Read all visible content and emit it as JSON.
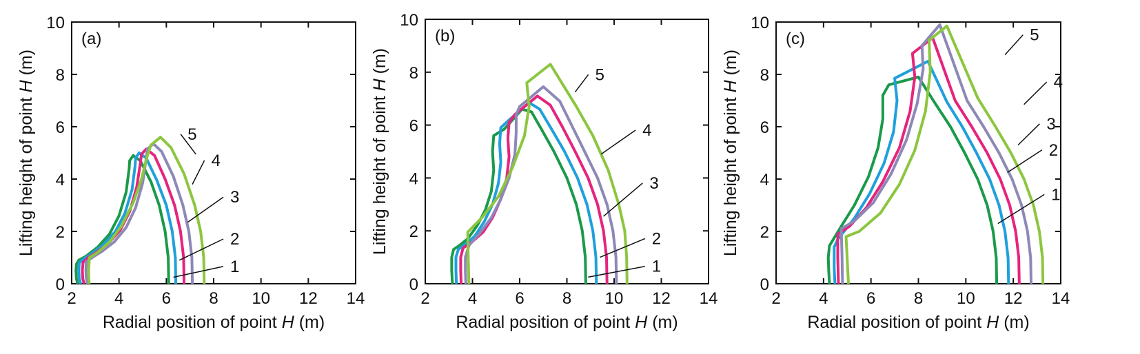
{
  "colors": {
    "1": "#1a9a4a",
    "2": "#1fa0dc",
    "3": "#e5247d",
    "4": "#8d88b8",
    "5": "#8cc63f",
    "axis": "#111111"
  },
  "chart_data": [
    {
      "type": "line",
      "panel_label": "(a)",
      "xlabel": {
        "pre": "Radial position of point ",
        "italic": "H",
        "post": " (m)"
      },
      "ylabel": {
        "pre": "Lifting height of point ",
        "italic": "H",
        "post": " (m)"
      },
      "xlim": [
        2,
        14
      ],
      "ylim": [
        0,
        10
      ],
      "xticks": [
        "2",
        "4",
        "6",
        "8",
        "10",
        "12",
        "14"
      ],
      "yticks": [
        "0",
        "2",
        "4",
        "6",
        "8",
        "10"
      ],
      "grid": false,
      "series": [
        {
          "name": "1",
          "x": [
            6.1,
            6.08,
            5.95,
            5.7,
            5.35,
            4.9,
            4.6,
            4.45,
            4.43,
            4.3,
            4.0,
            3.6,
            3.1,
            2.6,
            2.3,
            2.2,
            2.18,
            2.2,
            2.25
          ],
          "y": [
            0.0,
            1.0,
            2.0,
            3.0,
            3.9,
            4.7,
            4.9,
            4.7,
            4.4,
            3.5,
            2.6,
            1.9,
            1.4,
            1.05,
            0.9,
            0.75,
            0.5,
            0.2,
            0.0
          ]
        },
        {
          "name": "2",
          "x": [
            6.4,
            6.38,
            6.25,
            6.0,
            5.6,
            5.15,
            4.85,
            4.7,
            4.68,
            4.55,
            4.25,
            3.85,
            3.35,
            2.85,
            2.5,
            2.32,
            2.3,
            2.32,
            2.38
          ],
          "y": [
            0.0,
            1.0,
            2.0,
            3.0,
            3.95,
            4.8,
            5.0,
            4.8,
            4.5,
            3.6,
            2.7,
            2.0,
            1.5,
            1.15,
            0.95,
            0.8,
            0.5,
            0.2,
            0.0
          ]
        },
        {
          "name": "3",
          "x": [
            6.75,
            6.73,
            6.6,
            6.35,
            5.95,
            5.5,
            5.15,
            4.95,
            4.9,
            4.75,
            4.45,
            4.05,
            3.55,
            3.05,
            2.7,
            2.48,
            2.45,
            2.47,
            2.52
          ],
          "y": [
            0.0,
            1.0,
            2.0,
            3.0,
            4.0,
            4.9,
            5.15,
            4.95,
            4.6,
            3.7,
            2.75,
            2.05,
            1.55,
            1.2,
            1.0,
            0.82,
            0.5,
            0.2,
            0.0
          ]
        },
        {
          "name": "4",
          "x": [
            7.1,
            7.08,
            6.95,
            6.7,
            6.3,
            5.8,
            5.45,
            5.2,
            5.15,
            5.0,
            4.7,
            4.3,
            3.8,
            3.3,
            2.9,
            2.62,
            2.6,
            2.62,
            2.66
          ],
          "y": [
            0.0,
            1.0,
            2.0,
            3.0,
            4.1,
            5.05,
            5.35,
            5.15,
            4.8,
            3.85,
            2.9,
            2.15,
            1.6,
            1.25,
            1.02,
            0.85,
            0.5,
            0.2,
            0.0
          ]
        },
        {
          "name": "5",
          "x": [
            7.6,
            7.58,
            7.45,
            7.2,
            6.75,
            6.2,
            5.75,
            5.35,
            5.2,
            4.95,
            4.6,
            4.1,
            3.6,
            3.1,
            2.75,
            2.72,
            2.72,
            2.74
          ],
          "y": [
            0.0,
            1.0,
            2.0,
            3.0,
            4.2,
            5.2,
            5.6,
            5.3,
            4.9,
            4.0,
            3.1,
            2.2,
            1.6,
            1.2,
            1.0,
            0.6,
            0.3,
            0.0
          ]
        }
      ],
      "annotations": [
        {
          "text": "1",
          "x": 8.7,
          "y": 0.45,
          "tx": 6.3,
          "ty": 0.25
        },
        {
          "text": "2",
          "x": 8.7,
          "y": 1.5,
          "tx": 6.55,
          "ty": 0.9
        },
        {
          "text": "3",
          "x": 8.7,
          "y": 3.1,
          "tx": 6.9,
          "ty": 2.35
        },
        {
          "text": "4",
          "x": 7.9,
          "y": 4.5,
          "tx": 7.1,
          "ty": 3.8
        },
        {
          "text": "5",
          "x": 6.9,
          "y": 5.5,
          "tx": 7.25,
          "ty": 4.95
        }
      ]
    },
    {
      "type": "line",
      "panel_label": "(b)",
      "xlabel": {
        "pre": "Radial position of point ",
        "italic": "H",
        "post": " (m)"
      },
      "ylabel": {
        "pre": "Lifting height of point ",
        "italic": "H",
        "post": " (m)"
      },
      "xlim": [
        2,
        14
      ],
      "ylim": [
        0,
        10
      ],
      "xticks": [
        "2",
        "4",
        "6",
        "8",
        "10",
        "12",
        "14"
      ],
      "yticks": [
        "0",
        "2",
        "4",
        "6",
        "8",
        "10"
      ],
      "grid": false,
      "series": [
        {
          "name": "1",
          "x": [
            8.8,
            8.78,
            8.65,
            8.4,
            8.0,
            7.45,
            6.95,
            6.5,
            6.1,
            5.35,
            4.9,
            4.85,
            4.9,
            4.8,
            4.55,
            4.2,
            3.8,
            3.45,
            3.2,
            3.12,
            3.12,
            3.15
          ],
          "y": [
            0.0,
            1.0,
            2.0,
            3.0,
            4.0,
            5.0,
            5.8,
            6.5,
            6.6,
            5.85,
            5.6,
            5.0,
            4.3,
            3.5,
            2.8,
            2.2,
            1.7,
            1.45,
            1.3,
            1.0,
            0.5,
            0.0
          ]
        },
        {
          "name": "2",
          "x": [
            9.25,
            9.23,
            9.1,
            8.85,
            8.45,
            7.9,
            7.35,
            6.85,
            6.4,
            5.5,
            5.2,
            5.15,
            5.2,
            5.1,
            4.85,
            4.5,
            4.1,
            3.7,
            3.4,
            3.3,
            3.3,
            3.32
          ],
          "y": [
            0.0,
            1.0,
            2.0,
            3.0,
            4.0,
            5.0,
            5.85,
            6.6,
            6.85,
            6.15,
            5.9,
            5.3,
            4.6,
            3.8,
            3.0,
            2.35,
            1.8,
            1.5,
            1.3,
            1.0,
            0.5,
            0.0
          ]
        },
        {
          "name": "3",
          "x": [
            9.7,
            9.68,
            9.55,
            9.3,
            8.9,
            8.35,
            7.8,
            7.3,
            6.75,
            5.8,
            5.55,
            5.5,
            5.55,
            5.45,
            5.2,
            4.85,
            4.45,
            4.0,
            3.6,
            3.5,
            3.5,
            3.52
          ],
          "y": [
            0.0,
            1.0,
            2.0,
            3.0,
            4.0,
            5.0,
            5.95,
            6.75,
            7.1,
            6.4,
            6.1,
            5.5,
            4.8,
            4.0,
            3.2,
            2.5,
            1.95,
            1.6,
            1.35,
            1.0,
            0.5,
            0.0
          ]
        },
        {
          "name": "4",
          "x": [
            10.1,
            10.08,
            9.95,
            9.7,
            9.3,
            8.75,
            8.2,
            7.7,
            7.0,
            6.0,
            5.85,
            5.85,
            5.8,
            5.55,
            5.2,
            4.8,
            4.3,
            3.85,
            3.7,
            3.7,
            3.72
          ],
          "y": [
            0.0,
            1.0,
            2.0,
            3.0,
            4.0,
            5.0,
            6.0,
            6.9,
            7.45,
            6.7,
            6.4,
            5.7,
            4.9,
            4.0,
            3.2,
            2.5,
            1.9,
            1.45,
            1.0,
            0.5,
            0.0
          ]
        },
        {
          "name": "5",
          "x": [
            10.55,
            10.53,
            10.45,
            10.2,
            9.75,
            9.1,
            8.4,
            7.3,
            6.3,
            6.4,
            6.2,
            5.7,
            5.1,
            4.4,
            3.8,
            3.82,
            3.85
          ],
          "y": [
            0.0,
            1.0,
            2.0,
            3.0,
            4.3,
            5.6,
            6.7,
            8.3,
            7.6,
            6.7,
            5.6,
            4.4,
            3.3,
            2.5,
            1.95,
            1.0,
            0.0
          ]
        }
      ],
      "annotations": [
        {
          "text": "1",
          "x": 11.6,
          "y": 0.45,
          "tx": 8.9,
          "ty": 0.25
        },
        {
          "text": "2",
          "x": 11.6,
          "y": 1.5,
          "tx": 9.4,
          "ty": 1.0
        },
        {
          "text": "3",
          "x": 11.5,
          "y": 3.6,
          "tx": 9.55,
          "ty": 2.55
        },
        {
          "text": "4",
          "x": 11.2,
          "y": 5.6,
          "tx": 9.45,
          "ty": 4.9
        },
        {
          "text": "5",
          "x": 9.2,
          "y": 7.7,
          "tx": 8.35,
          "ty": 7.25
        }
      ]
    },
    {
      "type": "line",
      "panel_label": "(c)",
      "xlabel": {
        "pre": "Radial position of point ",
        "italic": "H",
        "post": " (m)"
      },
      "ylabel": {
        "pre": "Lifting height of point ",
        "italic": "H",
        "post": " (m)"
      },
      "xlim": [
        2,
        14
      ],
      "ylim": [
        0,
        10
      ],
      "xticks": [
        "2",
        "4",
        "6",
        "8",
        "10",
        "12",
        "14"
      ],
      "yticks": [
        "0",
        "2",
        "4",
        "6",
        "8",
        "10"
      ],
      "grid": false,
      "series": [
        {
          "name": "1",
          "x": [
            11.3,
            11.28,
            11.15,
            10.9,
            10.5,
            9.95,
            9.35,
            8.7,
            8.0,
            6.75,
            6.5,
            6.5,
            6.3,
            5.9,
            5.3,
            4.75,
            4.25,
            4.2,
            4.22,
            4.25
          ],
          "y": [
            0.0,
            1.0,
            2.0,
            3.0,
            4.0,
            5.0,
            6.0,
            6.9,
            7.9,
            7.6,
            7.2,
            6.3,
            5.2,
            4.1,
            3.0,
            2.2,
            1.45,
            1.0,
            0.5,
            0.0
          ]
        },
        {
          "name": "2",
          "x": [
            11.8,
            11.78,
            11.65,
            11.4,
            11.0,
            10.45,
            9.85,
            9.2,
            8.4,
            7.0,
            7.1,
            6.95,
            6.55,
            5.95,
            5.3,
            4.6,
            4.45,
            4.45,
            4.48
          ],
          "y": [
            0.0,
            1.0,
            2.0,
            3.0,
            4.0,
            5.0,
            6.0,
            6.95,
            8.5,
            7.85,
            7.0,
            5.8,
            4.6,
            3.45,
            2.5,
            1.7,
            1.4,
            0.6,
            0.0
          ]
        },
        {
          "name": "3",
          "x": [
            12.25,
            12.23,
            12.1,
            11.85,
            11.45,
            10.9,
            10.25,
            9.55,
            8.6,
            7.75,
            7.85,
            7.65,
            7.2,
            6.5,
            5.8,
            5.1,
            4.6,
            4.6,
            4.63
          ],
          "y": [
            0.0,
            1.0,
            2.0,
            3.0,
            4.0,
            5.0,
            6.0,
            7.0,
            9.4,
            8.8,
            7.9,
            6.6,
            5.2,
            3.9,
            2.9,
            2.2,
            1.9,
            1.0,
            0.0
          ]
        },
        {
          "name": "4",
          "x": [
            12.75,
            12.73,
            12.6,
            12.35,
            11.95,
            11.4,
            10.75,
            10.05,
            8.9,
            8.15,
            8.2,
            7.95,
            7.5,
            6.85,
            6.1,
            5.3,
            4.75,
            4.78,
            4.8
          ],
          "y": [
            0.0,
            1.0,
            2.0,
            3.0,
            4.0,
            5.0,
            6.0,
            7.0,
            9.9,
            9.1,
            8.2,
            6.9,
            5.5,
            4.2,
            3.1,
            2.4,
            2.1,
            1.0,
            0.0
          ]
        },
        {
          "name": "5",
          "x": [
            13.25,
            13.23,
            13.1,
            12.85,
            12.45,
            11.9,
            11.25,
            10.5,
            9.2,
            8.45,
            8.5,
            8.3,
            7.85,
            7.2,
            6.4,
            5.5,
            4.95,
            5.0,
            5.05
          ],
          "y": [
            0.0,
            1.0,
            2.0,
            3.0,
            4.0,
            5.0,
            6.0,
            7.1,
            9.85,
            9.3,
            8.1,
            6.6,
            5.1,
            3.8,
            2.7,
            2.0,
            1.8,
            0.9,
            0.0
          ]
        }
      ],
      "annotations": [
        {
          "text": "1",
          "x": 13.6,
          "y": 3.2,
          "tx": 11.35,
          "ty": 2.3
        },
        {
          "text": "2",
          "x": 13.5,
          "y": 4.9,
          "tx": 11.75,
          "ty": 4.25
        },
        {
          "text": "3",
          "x": 13.4,
          "y": 5.9,
          "tx": 12.2,
          "ty": 5.3
        },
        {
          "text": "4",
          "x": 13.7,
          "y": 7.5,
          "tx": 12.45,
          "ty": 6.85
        },
        {
          "text": "5",
          "x": 12.7,
          "y": 9.3,
          "tx": 11.65,
          "ty": 8.75
        }
      ]
    }
  ]
}
